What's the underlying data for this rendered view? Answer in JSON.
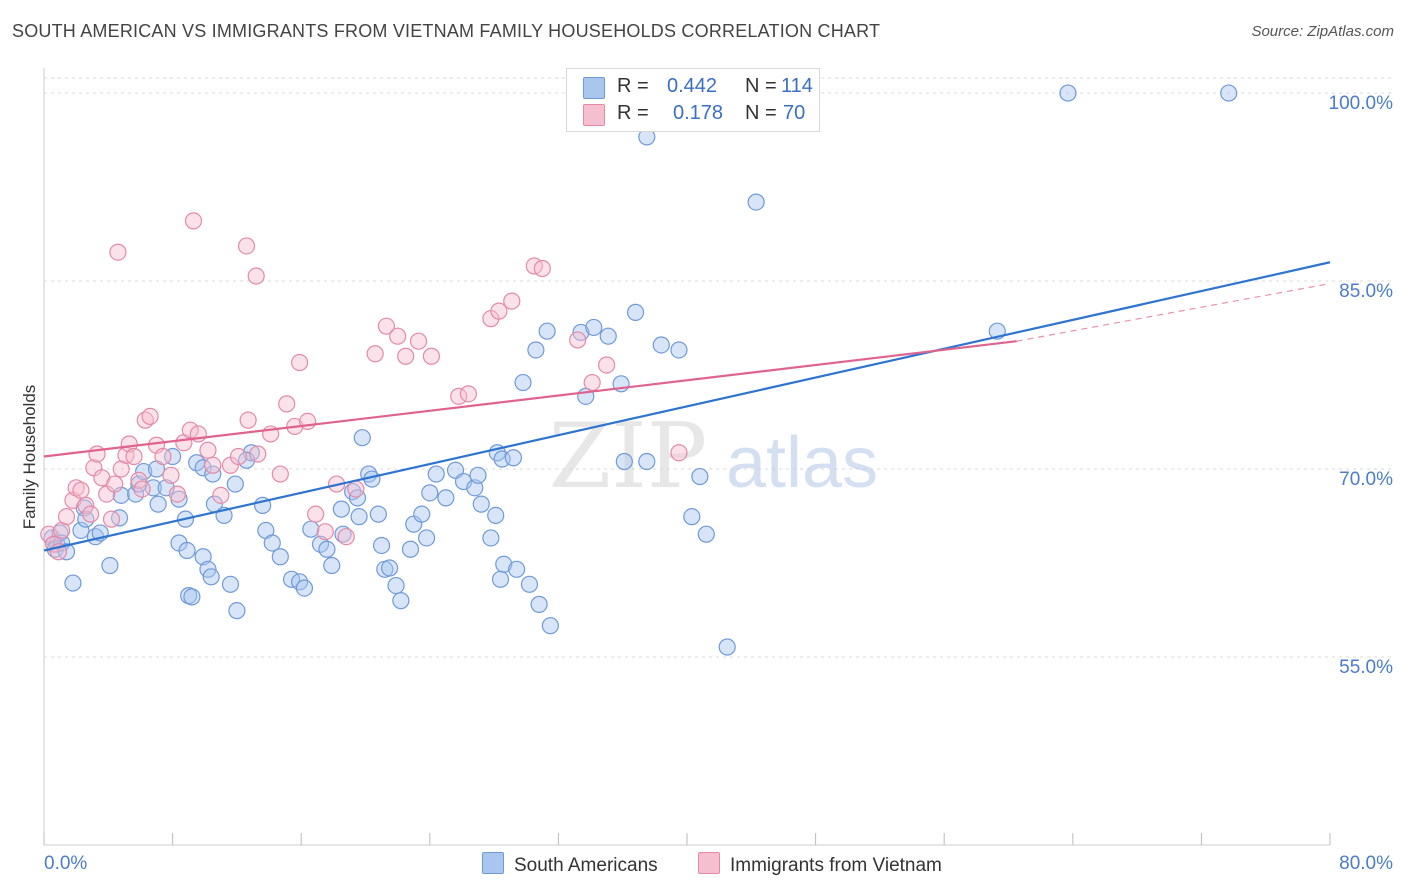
{
  "header": {
    "title": "SOUTH AMERICAN VS IMMIGRANTS FROM VIETNAM FAMILY HOUSEHOLDS CORRELATION CHART",
    "source": "Source: ZipAtlas.com"
  },
  "legend": {
    "r_label": "R =",
    "n_label": "N =",
    "series": [
      {
        "r": "0.442",
        "n": "114"
      },
      {
        "r": "0.178",
        "n": "70"
      }
    ]
  },
  "colors": {
    "blue_fill": "#a9c6ef",
    "blue_stroke": "#6f9ad8",
    "blue_line": "#2f74d0",
    "pink_fill": "#f6bfd0",
    "pink_stroke": "#e48aa7",
    "pink_line": "#e0628e",
    "tick_label": "#4c7cc9",
    "grid": "#d9d9d9"
  },
  "watermark": {
    "zip": "ZIP",
    "atlas": "atlas"
  },
  "chart_data": {
    "type": "scatter",
    "title": "SOUTH AMERICAN VS IMMIGRANTS FROM VIETNAM FAMILY HOUSEHOLDS CORRELATION CHART",
    "xlabel": "",
    "ylabel": "Family Households",
    "xlim": [
      0,
      80
    ],
    "ylim": [
      40,
      102
    ],
    "x_tick_labels": [
      "0.0%",
      "80.0%"
    ],
    "y_ticks": [
      {
        "value": 55,
        "label": "55.0%"
      },
      {
        "value": 70,
        "label": "70.0%"
      },
      {
        "value": 85,
        "label": "85.0%"
      },
      {
        "value": 100,
        "label": "100.0%"
      }
    ],
    "series": [
      {
        "name": "South Americans",
        "r": 0.442,
        "n": 114,
        "trend": {
          "x0": 0,
          "y0": 63.5,
          "x1": 80,
          "y1": 86.5
        },
        "points": [
          [
            0.5,
            64.5
          ],
          [
            0.8,
            64.0
          ],
          [
            0.7,
            63.6
          ],
          [
            1.0,
            64.9
          ],
          [
            1.1,
            64.1
          ],
          [
            1.4,
            63.4
          ],
          [
            1.8,
            60.9
          ],
          [
            2.5,
            66.9
          ],
          [
            2.3,
            65.1
          ],
          [
            2.6,
            66.0
          ],
          [
            3.2,
            64.6
          ],
          [
            3.5,
            64.9
          ],
          [
            4.1,
            62.3
          ],
          [
            4.7,
            66.1
          ],
          [
            4.8,
            67.9
          ],
          [
            5.7,
            68.0
          ],
          [
            5.9,
            68.8
          ],
          [
            6.2,
            69.8
          ],
          [
            7.0,
            70.0
          ],
          [
            6.8,
            68.5
          ],
          [
            7.1,
            67.2
          ],
          [
            7.6,
            68.5
          ],
          [
            8.4,
            67.6
          ],
          [
            8.0,
            71.0
          ],
          [
            8.8,
            66.0
          ],
          [
            8.4,
            64.1
          ],
          [
            8.9,
            63.5
          ],
          [
            9.9,
            63.0
          ],
          [
            9.0,
            59.9
          ],
          [
            9.2,
            59.8
          ],
          [
            10.2,
            62.0
          ],
          [
            10.4,
            61.4
          ],
          [
            9.5,
            70.5
          ],
          [
            9.9,
            70.1
          ],
          [
            10.5,
            69.6
          ],
          [
            10.6,
            67.2
          ],
          [
            11.2,
            66.3
          ],
          [
            11.9,
            68.8
          ],
          [
            11.6,
            60.8
          ],
          [
            12.0,
            58.7
          ],
          [
            12.9,
            71.3
          ],
          [
            12.6,
            70.7
          ],
          [
            13.6,
            67.1
          ],
          [
            13.8,
            65.1
          ],
          [
            14.2,
            64.1
          ],
          [
            14.7,
            63.0
          ],
          [
            15.4,
            61.2
          ],
          [
            15.9,
            61.0
          ],
          [
            16.2,
            60.5
          ],
          [
            16.6,
            65.2
          ],
          [
            17.2,
            64.0
          ],
          [
            17.6,
            63.6
          ],
          [
            17.9,
            62.3
          ],
          [
            18.6,
            64.8
          ],
          [
            18.5,
            66.8
          ],
          [
            19.2,
            68.2
          ],
          [
            19.5,
            67.7
          ],
          [
            19.8,
            72.5
          ],
          [
            19.6,
            66.2
          ],
          [
            20.2,
            69.6
          ],
          [
            20.8,
            66.4
          ],
          [
            20.4,
            69.2
          ],
          [
            21.0,
            63.9
          ],
          [
            21.2,
            62.0
          ],
          [
            21.5,
            62.1
          ],
          [
            21.9,
            60.7
          ],
          [
            22.2,
            59.5
          ],
          [
            23.0,
            65.6
          ],
          [
            22.8,
            63.6
          ],
          [
            23.5,
            66.4
          ],
          [
            23.8,
            64.5
          ],
          [
            24.0,
            68.1
          ],
          [
            24.4,
            69.6
          ],
          [
            25.0,
            67.7
          ],
          [
            25.6,
            69.9
          ],
          [
            26.1,
            69.0
          ],
          [
            26.8,
            68.5
          ],
          [
            27.2,
            67.2
          ],
          [
            27.0,
            69.5
          ],
          [
            28.2,
            71.3
          ],
          [
            28.5,
            70.8
          ],
          [
            29.2,
            70.9
          ],
          [
            28.6,
            62.4
          ],
          [
            28.4,
            61.2
          ],
          [
            28.1,
            66.3
          ],
          [
            27.8,
            64.5
          ],
          [
            30.2,
            60.8
          ],
          [
            30.8,
            59.2
          ],
          [
            31.5,
            57.5
          ],
          [
            29.4,
            62.0
          ],
          [
            33.7,
            75.8
          ],
          [
            29.8,
            76.9
          ],
          [
            30.6,
            79.5
          ],
          [
            31.3,
            81.0
          ],
          [
            33.4,
            80.9
          ],
          [
            34.2,
            81.3
          ],
          [
            35.1,
            80.6
          ],
          [
            35.9,
            76.8
          ],
          [
            36.1,
            70.6
          ],
          [
            36.8,
            82.5
          ],
          [
            37.5,
            70.6
          ],
          [
            38.4,
            79.9
          ],
          [
            39.5,
            79.5
          ],
          [
            40.3,
            66.2
          ],
          [
            41.2,
            64.8
          ],
          [
            42.5,
            55.8
          ],
          [
            37.5,
            96.5
          ],
          [
            44.3,
            91.3
          ],
          [
            59.3,
            81.0
          ],
          [
            63.7,
            100.0
          ],
          [
            73.7,
            100.0
          ],
          [
            40.8,
            69.4
          ]
        ]
      },
      {
        "name": "Immigrants from Vietnam",
        "r": 0.178,
        "n": 70,
        "trend": {
          "x0": 0,
          "y0": 71.0,
          "x1": 60.5,
          "y1": 80.2
        },
        "trend_extension": {
          "x0": 60.5,
          "y0": 80.2,
          "x1": 80,
          "y1": 84.8
        },
        "points": [
          [
            0.3,
            64.8
          ],
          [
            0.6,
            64.0
          ],
          [
            0.9,
            63.4
          ],
          [
            1.1,
            65.1
          ],
          [
            1.4,
            66.2
          ],
          [
            1.8,
            67.5
          ],
          [
            2.0,
            68.5
          ],
          [
            2.3,
            68.3
          ],
          [
            2.6,
            67.1
          ],
          [
            2.9,
            66.4
          ],
          [
            3.1,
            70.1
          ],
          [
            3.3,
            71.2
          ],
          [
            3.6,
            69.3
          ],
          [
            3.9,
            68.0
          ],
          [
            4.2,
            66.0
          ],
          [
            4.4,
            68.8
          ],
          [
            4.8,
            70.0
          ],
          [
            5.1,
            71.1
          ],
          [
            5.3,
            72.0
          ],
          [
            5.6,
            71.0
          ],
          [
            5.9,
            69.1
          ],
          [
            6.1,
            68.4
          ],
          [
            6.3,
            73.9
          ],
          [
            6.6,
            74.2
          ],
          [
            7.0,
            71.9
          ],
          [
            7.4,
            71.0
          ],
          [
            7.9,
            69.5
          ],
          [
            8.3,
            68.0
          ],
          [
            8.7,
            72.1
          ],
          [
            9.1,
            73.1
          ],
          [
            9.6,
            72.8
          ],
          [
            10.2,
            71.5
          ],
          [
            10.5,
            70.3
          ],
          [
            11.0,
            67.9
          ],
          [
            11.6,
            70.3
          ],
          [
            12.1,
            71.0
          ],
          [
            12.7,
            73.9
          ],
          [
            13.3,
            71.2
          ],
          [
            14.1,
            72.8
          ],
          [
            14.7,
            69.6
          ],
          [
            15.1,
            75.2
          ],
          [
            15.6,
            73.4
          ],
          [
            16.4,
            73.8
          ],
          [
            16.9,
            66.4
          ],
          [
            17.5,
            65.0
          ],
          [
            18.2,
            68.8
          ],
          [
            18.8,
            64.6
          ],
          [
            19.4,
            68.4
          ],
          [
            20.6,
            79.2
          ],
          [
            21.3,
            81.4
          ],
          [
            22.0,
            80.6
          ],
          [
            22.5,
            79.0
          ],
          [
            23.3,
            80.2
          ],
          [
            24.1,
            79.0
          ],
          [
            25.8,
            75.8
          ],
          [
            26.4,
            76.0
          ],
          [
            27.8,
            82.0
          ],
          [
            28.3,
            82.6
          ],
          [
            29.1,
            83.4
          ],
          [
            30.5,
            86.2
          ],
          [
            31.0,
            86.0
          ],
          [
            33.2,
            80.3
          ],
          [
            34.1,
            76.9
          ],
          [
            35.0,
            78.3
          ],
          [
            4.6,
            87.3
          ],
          [
            9.3,
            89.8
          ],
          [
            12.6,
            87.8
          ],
          [
            13.2,
            85.4
          ],
          [
            15.9,
            78.5
          ],
          [
            39.5,
            71.3
          ]
        ]
      }
    ]
  }
}
